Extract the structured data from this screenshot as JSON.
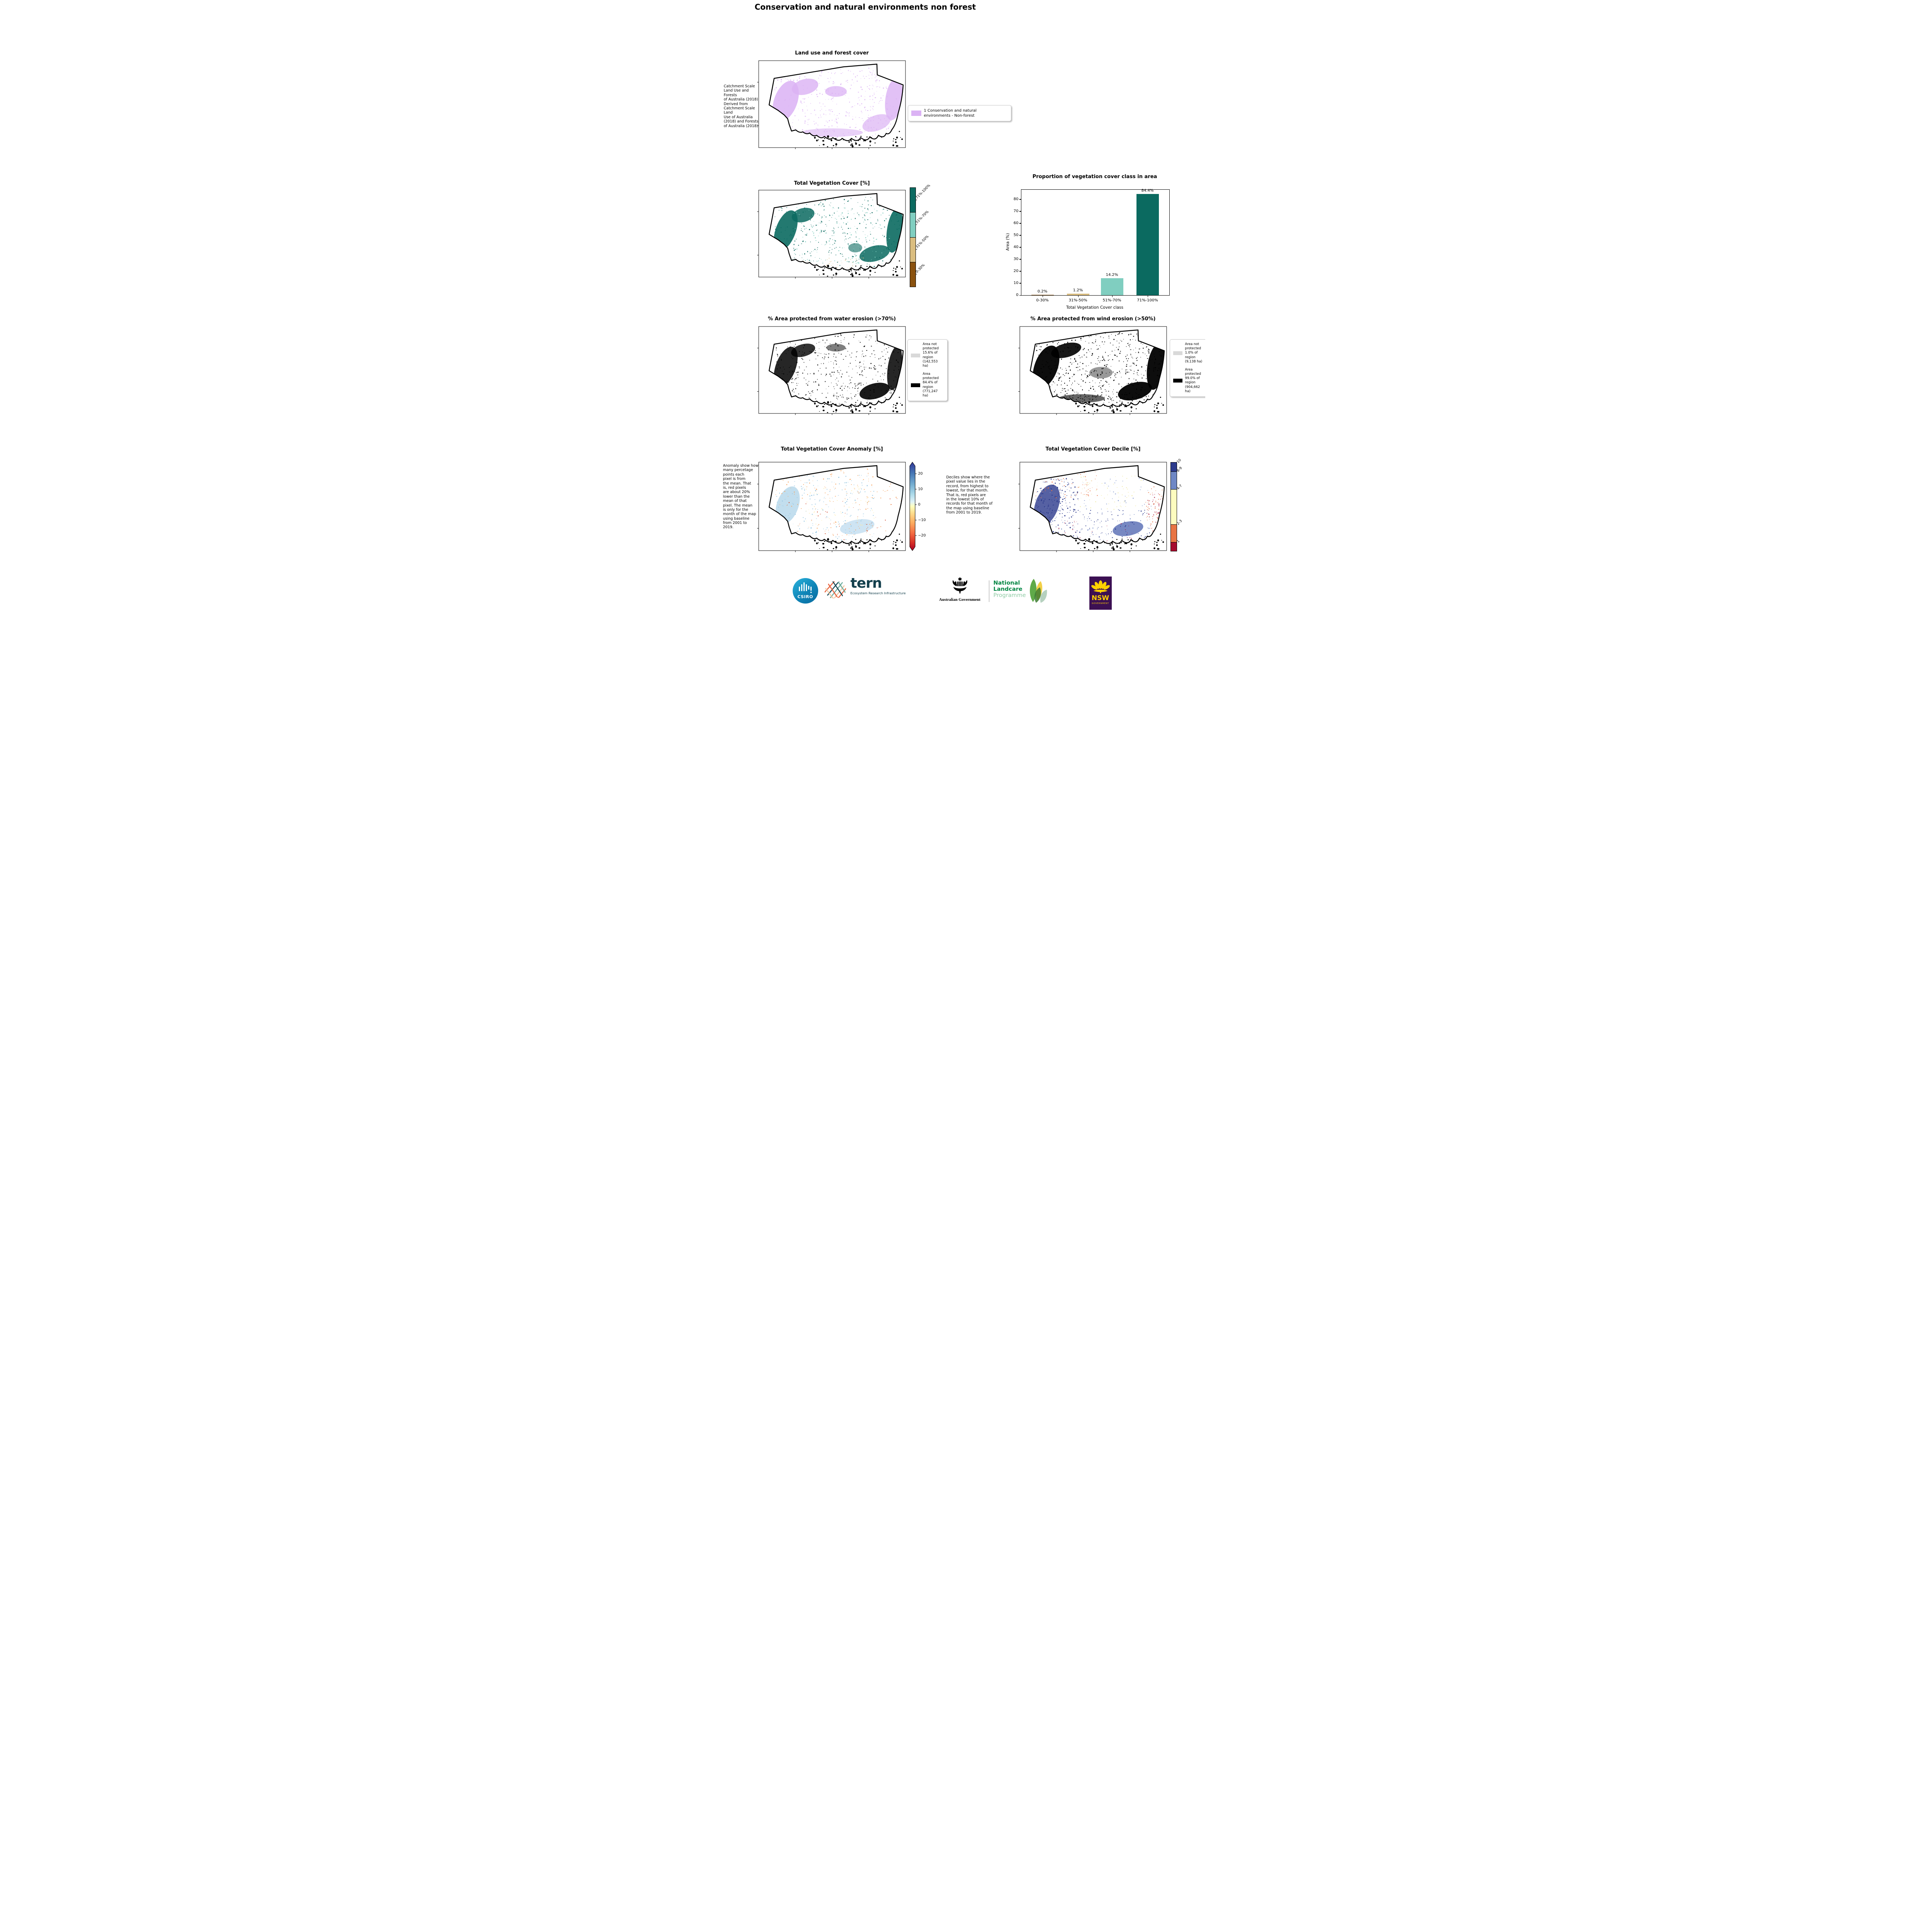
{
  "page_title": "Conservation and natural environments non forest",
  "colors": {
    "landuse": "#dbb2f4",
    "veg_classes": [
      "#0b6a60",
      "#80cec0",
      "#dabd80",
      "#8a520f"
    ],
    "decile_classes": [
      "#2c3a8c",
      "#6e87c5",
      "#fdfcbf",
      "#e87444",
      "#a50b2e"
    ],
    "not_protected": "#d9d9d9",
    "protected": "#000000",
    "anomaly_pos": "#313695",
    "anomaly_neg": "#a50026"
  },
  "panels": {
    "land_use": {
      "title": "Land use and forest cover",
      "side_note": " Catchment Scale\nLand Use and Forests\nof Australia (2018)\nDerived from\nCatchment Scale Land\nUse of Australia\n(2018) and Forests\nof Australia (2018)",
      "legend_label": "1 Conservation and natural environments - Non-forest"
    },
    "veg_cover": {
      "title": "Total Vegetation Cover [%]",
      "colorbar_labels": [
        "71%-100%",
        "51%-70%",
        "31%-50%",
        "0-30%"
      ]
    },
    "water_erosion": {
      "title": "% Area protected from water erosion (>70%)",
      "legend": [
        {
          "label": "Area not protected 15.6% of region (142,553 ha)"
        },
        {
          "label": "Area protected 84.4% of region (771,247 ha)"
        }
      ]
    },
    "wind_erosion": {
      "title": "% Area protected from wind erosion (>50%)",
      "legend": [
        {
          "label": "Area not protected 1.0% of region (9,138 ha)"
        },
        {
          "label": "Area protected 99.0% of region (904,662 ha)"
        }
      ]
    },
    "anomaly": {
      "title": "Total Vegetation Cover Anomaly [%]",
      "side_note": "Anomaly show how\nmany percetage\npoints each\npixel is from\nthe mean. That\nis, red pixels\nare about 20%\nlower than the\nmean of that\npixel. The mean\nis only for the\nmonth of the map\nusing baseline\nfrom 2001 to\n2019.",
      "colorbar_ticks": [
        "20",
        "10",
        "0",
        "−10",
        "−20"
      ]
    },
    "decile": {
      "title": "Total Vegetation Cover Decile [%]",
      "note": "Deciles show where the\npixel value lies in the\nrecord, from highest to\nlowest, for that month.\nThat is, red pixels are\nin the lowest 10% of\nrecords for that month of\nthe map using baseline\nfrom 2001 to 2019.",
      "colorbar_labels": [
        "10",
        "8-9",
        "4-7",
        "2-3",
        "1"
      ]
    }
  },
  "chart_data": {
    "type": "bar",
    "title": "Proportion of vegetation cover class in area",
    "categories": [
      "0-30%",
      "31%-50%",
      "51%-70%",
      "71%-100%"
    ],
    "values": [
      0.2,
      1.2,
      14.2,
      84.4
    ],
    "bar_labels": [
      "0.2%",
      "1.2%",
      "14.2%",
      "84.4%"
    ],
    "bar_colors": [
      "#8a520f",
      "#dabd80",
      "#80cec0",
      "#0b6a60"
    ],
    "xlabel": "Total Vegetation Cover class",
    "ylabel": "Area (%)",
    "ylim": [
      0,
      88
    ],
    "yticks": [
      0,
      10,
      20,
      30,
      40,
      50,
      60,
      70,
      80
    ],
    "grid": false,
    "legend_position": "none"
  },
  "footer": {
    "csiro": "CSIRO",
    "tern": "tern",
    "tern_tagline": "Ecosystem Research Infrastructure",
    "aus_gov": "Australian Government",
    "landcare_line1": "National",
    "landcare_line2": "Landcare",
    "landcare_line3": "Programme",
    "nsw": "NSW",
    "nsw_sub": "GOVERNMENT"
  }
}
